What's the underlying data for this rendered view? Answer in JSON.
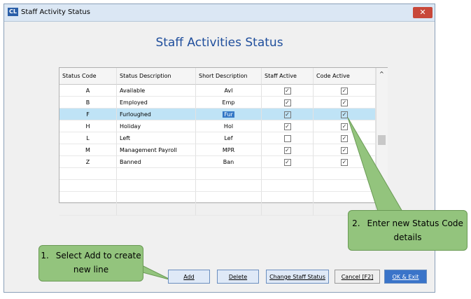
{
  "window": {
    "icon": "CL",
    "title": "Staff  Activity Status"
  },
  "heading": "Staff Activities Status",
  "table": {
    "headers": [
      "Status Code",
      "Status Description",
      "Short Description",
      "Staff Active",
      "Code Active"
    ],
    "rows": [
      [
        "A",
        "Available",
        "Avl",
        true,
        true
      ],
      [
        "B",
        "Employed",
        "Emp",
        true,
        true
      ],
      [
        "F",
        "Furloughed",
        "Fur",
        true,
        true
      ],
      [
        "H",
        "Holiday",
        "Hol",
        true,
        true
      ],
      [
        "L",
        "Left",
        "Lef",
        false,
        true
      ],
      [
        "M",
        "Management Payroll",
        "MPR",
        true,
        true
      ],
      [
        "Z",
        "Banned",
        "Ban",
        true,
        true
      ]
    ],
    "selected_row": 2
  },
  "buttons": [
    "Add",
    "Delete",
    "Change Staff Status",
    "Cancel [F2]",
    "OK & Exit"
  ],
  "callouts": [
    {
      "number": "1.",
      "text": "Select Add to create new line"
    },
    {
      "number": "2.",
      "text": "Enter new Status Code details"
    }
  ]
}
